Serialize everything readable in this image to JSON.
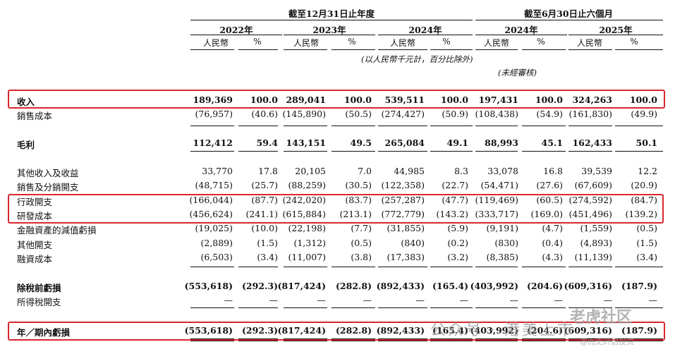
{
  "header": {
    "period_annual": "截至12月31日止年度",
    "period_half": "截至6月30日止六個月",
    "years": [
      "2022年",
      "2023年",
      "2024年",
      "2024年",
      "2025年"
    ],
    "col_labels": [
      "人民幣",
      "%",
      "人民幣",
      "%",
      "人民幣",
      "%",
      "人民幣",
      "%",
      "人民幣",
      "%"
    ],
    "unit_note": "(以人民幣千元計，百分比除外)",
    "unaudited": "(未經審核)"
  },
  "rows": [
    {
      "label": "收入",
      "bold": true,
      "cells": [
        "189,369",
        "100.0",
        "289,041",
        "100.0",
        "539,511",
        "100.0",
        "197,431",
        "100.0",
        "324,263",
        "100.0"
      ]
    },
    {
      "label": "銷售成本",
      "bold": false,
      "cells": [
        "(76,957)",
        "(40.6)",
        "(145,890)",
        "(50.5)",
        "(274,427)",
        "(50.9)",
        "(108,438)",
        "(54.9)",
        "(161,830)",
        "(49.9)"
      ]
    },
    {
      "label": "毛利",
      "bold": true,
      "cells": [
        "112,412",
        "59.4",
        "143,151",
        "49.5",
        "265,084",
        "49.1",
        "88,993",
        "45.1",
        "162,433",
        "50.1"
      ]
    },
    {
      "label": "其他收入及收益",
      "bold": false,
      "cells": [
        "33,770",
        "17.8",
        "20,105",
        "7.0",
        "44,985",
        "8.3",
        "33,078",
        "16.8",
        "39,539",
        "12.2"
      ]
    },
    {
      "label": "銷售及分銷開支",
      "bold": false,
      "cells": [
        "(48,715)",
        "(25.7)",
        "(88,259)",
        "(30.5)",
        "(122,358)",
        "(22.7)",
        "(54,471)",
        "(27.6)",
        "(67,609)",
        "(20.9)"
      ]
    },
    {
      "label": "行政開支",
      "bold": false,
      "cells": [
        "(166,044)",
        "(87.7)",
        "(242,020)",
        "(83.7)",
        "(257,287)",
        "(47.7)",
        "(119,469)",
        "(60.5)",
        "(274,592)",
        "(84.7)"
      ]
    },
    {
      "label": "研發成本",
      "bold": false,
      "cells": [
        "(456,624)",
        "(241.1)",
        "(615,884)",
        "(213.1)",
        "(772,779)",
        "(143.2)",
        "(333,717)",
        "(169.0)",
        "(451,496)",
        "(139.2)"
      ]
    },
    {
      "label": "金融資產的減值虧損",
      "bold": false,
      "cells": [
        "(19,025)",
        "(10.0)",
        "(22,198)",
        "(7.7)",
        "(31,855)",
        "(5.9)",
        "(9,191)",
        "(4.7)",
        "(1,559)",
        "(0.5)"
      ]
    },
    {
      "label": "其他開支",
      "bold": false,
      "cells": [
        "(2,889)",
        "(1.5)",
        "(1,312)",
        "(0.5)",
        "(840)",
        "(0.2)",
        "(830)",
        "(0.4)",
        "(4,893)",
        "(1.5)"
      ]
    },
    {
      "label": "融資成本",
      "bold": false,
      "cells": [
        "(6,503)",
        "(3.4)",
        "(11,007)",
        "(3.8)",
        "(17,383)",
        "(3.2)",
        "(8,385)",
        "(4.3)",
        "(11,139)",
        "(3.4)"
      ]
    },
    {
      "label": "除稅前虧損",
      "bold": true,
      "cells": [
        "(553,618)",
        "(292.3)",
        "(817,424)",
        "(282.8)",
        "(892,433)",
        "(165.4)",
        "(403,992)",
        "(204.6)",
        "(609,316)",
        "(187.9)"
      ]
    },
    {
      "label": "所得稅開支",
      "bold": false,
      "cells": [
        "—",
        "—",
        "—",
        "—",
        "—",
        "—",
        "—",
        "—",
        "—",
        "—"
      ]
    },
    {
      "label": "年／期內虧損",
      "bold": true,
      "cells": [
        "(553,618)",
        "(292.3)",
        "(817,424)",
        "(282.8)",
        "(892,433)",
        "(165.4)",
        "(403,992)",
        "(204.6)",
        "(609,316)",
        "(187.9)"
      ]
    }
  ],
  "watermark": {
    "left": "公众号 · 港美上市",
    "right": "老虎社区",
    "small": "@而无计划投资"
  },
  "colors": {
    "highlight_box": "#d9262c",
    "text": "#111111",
    "watermark": "#9a9a9a"
  }
}
